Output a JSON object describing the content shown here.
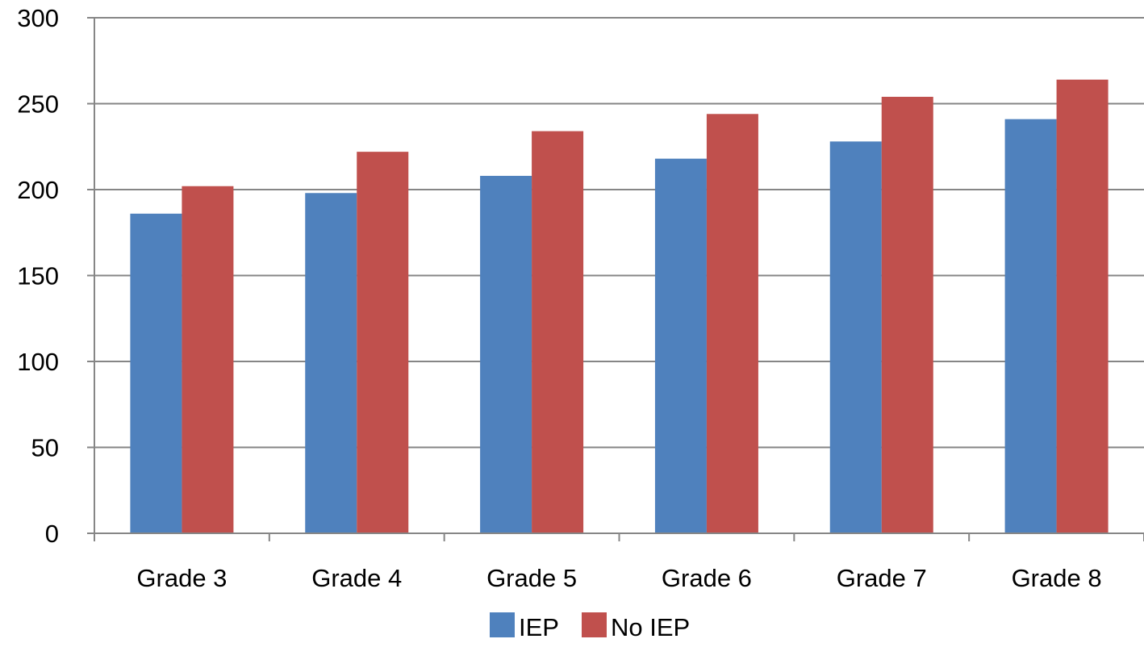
{
  "chart_data": {
    "type": "bar",
    "title": "",
    "xlabel": "",
    "ylabel": "",
    "categories": [
      "Grade 3",
      "Grade 4",
      "Grade 5",
      "Grade 6",
      "Grade 7",
      "Grade 8"
    ],
    "series": [
      {
        "name": "IEP",
        "values": [
          186,
          198,
          208,
          218,
          228,
          241
        ]
      },
      {
        "name": "No IEP",
        "values": [
          202,
          222,
          234,
          244,
          254,
          264
        ]
      }
    ],
    "ylim": [
      0,
      300
    ],
    "yticks": [
      0,
      50,
      100,
      150,
      200,
      250,
      300
    ],
    "grid": true,
    "legend": "bottom",
    "colors": {
      "IEP": "#4f81bd",
      "No IEP": "#c0504d"
    }
  }
}
